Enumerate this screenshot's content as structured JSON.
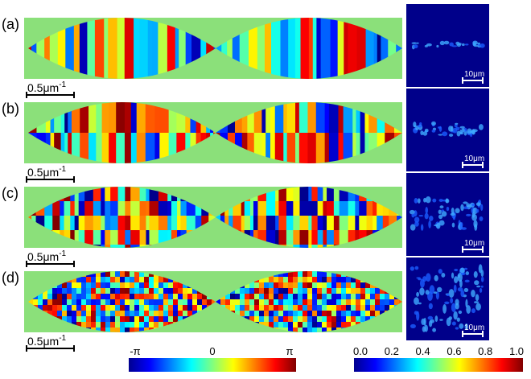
{
  "panels": [
    {
      "label": "(a)",
      "scale_bar": {
        "text": "0.5μm",
        "superscript": "-1"
      },
      "image_scale": "10μm"
    },
    {
      "label": "(b)",
      "scale_bar": {
        "text": "0.5μm",
        "superscript": "-1"
      },
      "image_scale": "10μm"
    },
    {
      "label": "(c)",
      "scale_bar": {
        "text": "0.5μm",
        "superscript": "-1"
      },
      "image_scale": "10μm"
    },
    {
      "label": "(d)",
      "scale_bar": {
        "text": "0.5μm",
        "superscript": "-1"
      },
      "image_scale": "10μm"
    }
  ],
  "phase_colorbar": {
    "ticks": [
      "-π",
      "0",
      "π"
    ]
  },
  "intensity_colorbar": {
    "ticks": [
      "0.0",
      "0.2",
      "0.4",
      "0.6",
      "0.8",
      "1.0"
    ]
  }
}
